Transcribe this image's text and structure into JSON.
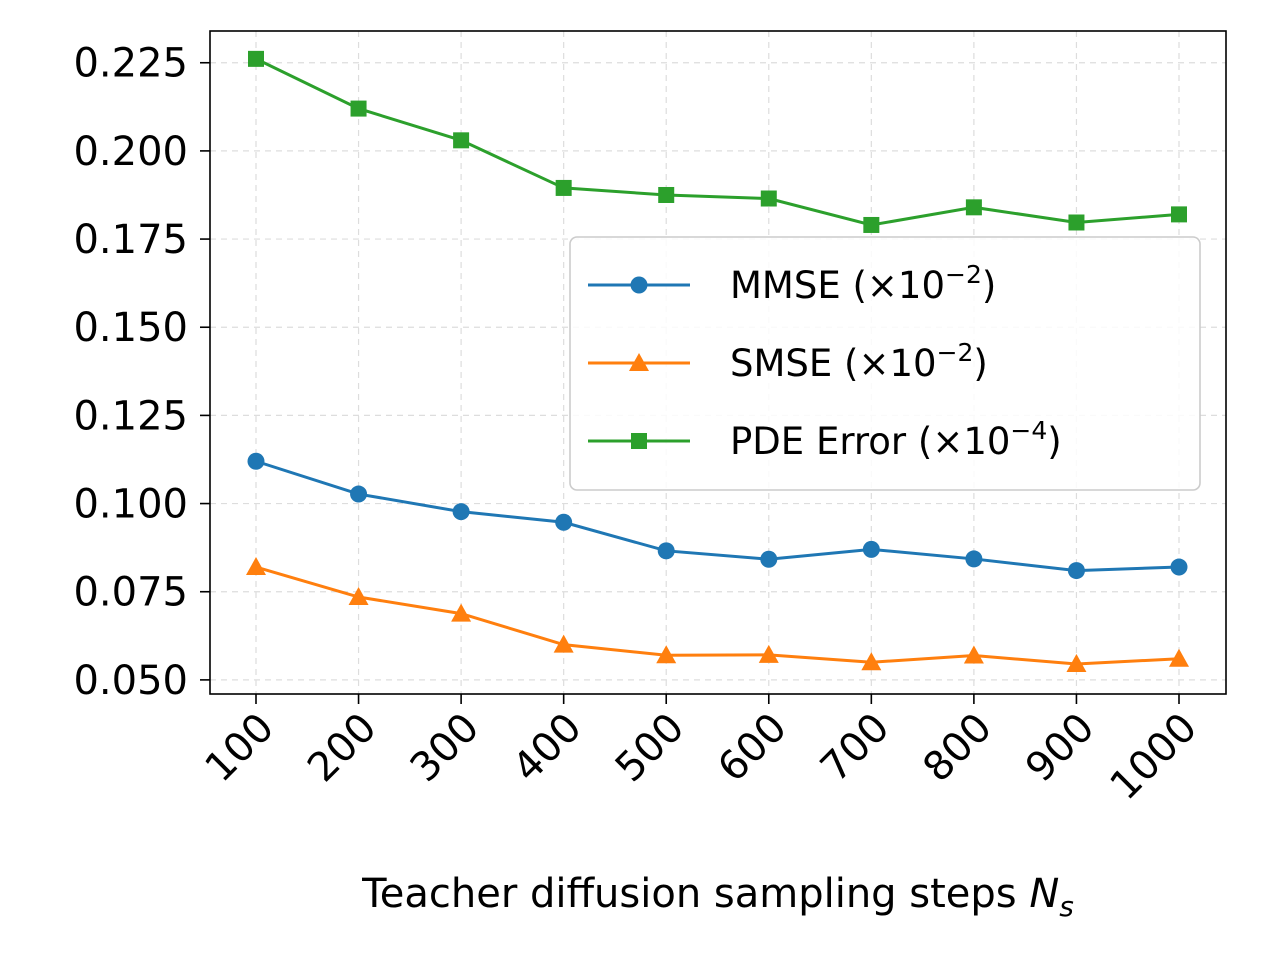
{
  "chart_data": {
    "type": "line",
    "title": "",
    "xlabel": "Teacher diffusion sampling steps",
    "xlabel_symbol": "N",
    "xlabel_subscript": "s",
    "ylabel": "",
    "categories": [
      "100",
      "200",
      "300",
      "400",
      "500",
      "600",
      "700",
      "800",
      "900",
      "1000"
    ],
    "ylim": [
      0.046,
      0.234
    ],
    "yticks": [
      0.05,
      0.075,
      0.1,
      0.125,
      0.15,
      0.175,
      0.2,
      0.225
    ],
    "ytick_labels": [
      "0.050",
      "0.075",
      "0.100",
      "0.125",
      "0.150",
      "0.175",
      "0.200",
      "0.225"
    ],
    "grid": true,
    "legend_position": "center-right",
    "series": [
      {
        "name": "MMSE",
        "legend_base": "MMSE (×10",
        "legend_exp": "−2",
        "legend_close": ")",
        "color": "#1f77b4",
        "marker": "circle",
        "values": [
          0.112,
          0.1027,
          0.0977,
          0.0947,
          0.0866,
          0.0842,
          0.087,
          0.0843,
          0.081,
          0.082
        ]
      },
      {
        "name": "SMSE",
        "legend_base": "SMSE (×10",
        "legend_exp": "−2",
        "legend_close": ")",
        "color": "#ff7f0e",
        "marker": "triangle",
        "values": [
          0.082,
          0.0735,
          0.0688,
          0.06,
          0.057,
          0.0571,
          0.055,
          0.0569,
          0.0545,
          0.056
        ]
      },
      {
        "name": "PDE Error",
        "legend_base": "PDE Error (×10",
        "legend_exp": "−4",
        "legend_close": ")",
        "color": "#2ca02c",
        "marker": "square",
        "values": [
          0.2261,
          0.212,
          0.203,
          0.1895,
          0.1875,
          0.1865,
          0.179,
          0.184,
          0.1797,
          0.182
        ]
      }
    ]
  }
}
